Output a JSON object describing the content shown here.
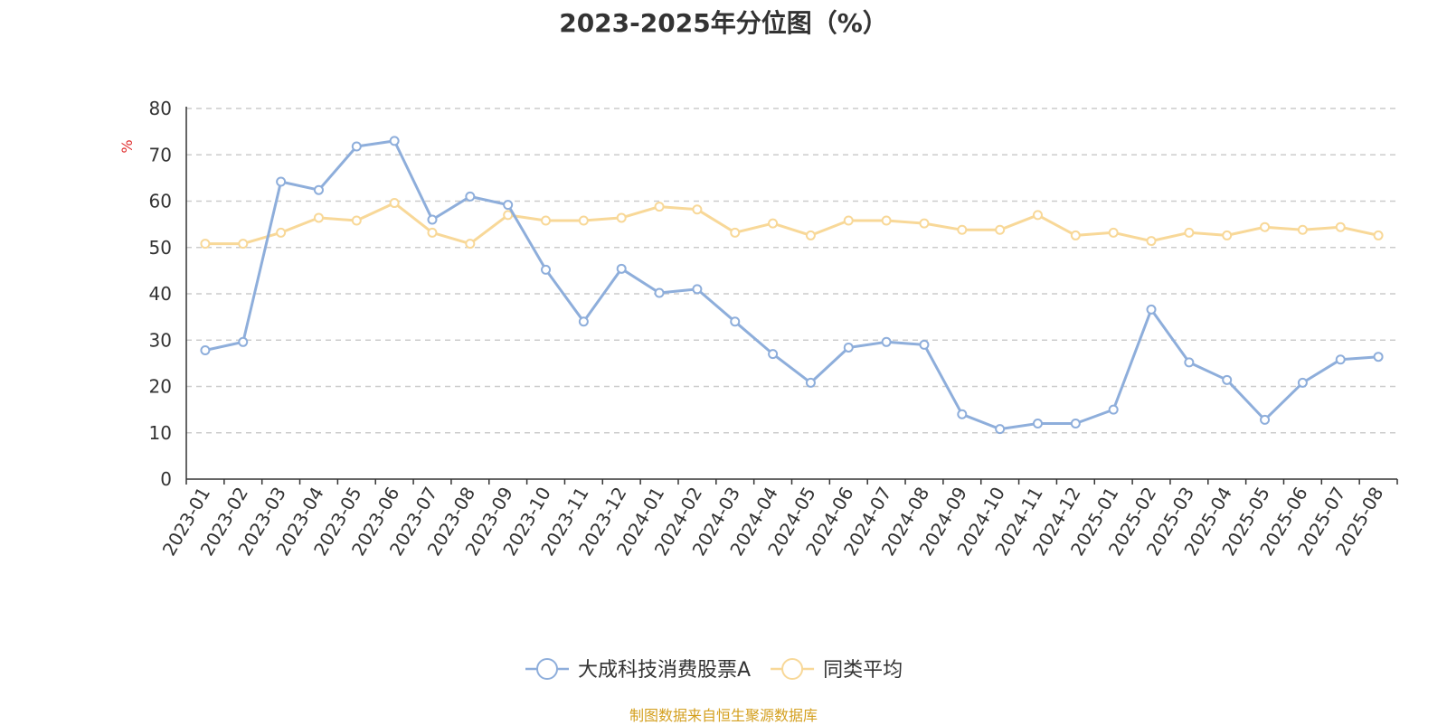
{
  "chart_data": {
    "type": "line",
    "title": "2023-2025年分位图（%）",
    "ylabel": "%",
    "ylim": [
      0,
      80
    ],
    "yticks": [
      0,
      10,
      20,
      30,
      40,
      50,
      60,
      70,
      80
    ],
    "grid": true,
    "legend_position": "bottom",
    "categories": [
      "2023-01",
      "2023-02",
      "2023-03",
      "2023-04",
      "2023-05",
      "2023-06",
      "2023-07",
      "2023-08",
      "2023-09",
      "2023-10",
      "2023-11",
      "2023-12",
      "2024-01",
      "2024-02",
      "2024-03",
      "2024-04",
      "2024-05",
      "2024-06",
      "2024-07",
      "2024-08",
      "2024-09",
      "2024-10",
      "2024-11",
      "2024-12",
      "2025-01",
      "2025-02",
      "2025-03",
      "2025-04",
      "2025-05",
      "2025-06",
      "2025-07",
      "2025-08"
    ],
    "series": [
      {
        "name": "大成科技消费股票A",
        "color": "#8eaedb",
        "values": [
          27.8,
          29.6,
          64.2,
          62.4,
          71.8,
          73.0,
          56.0,
          61.0,
          59.2,
          45.2,
          34.0,
          45.4,
          40.2,
          41.0,
          34.0,
          27.0,
          20.8,
          28.4,
          29.6,
          29.0,
          14.0,
          10.8,
          12.0,
          12.0,
          15.0,
          36.6,
          25.2,
          21.4,
          12.8,
          20.8,
          25.8,
          26.4
        ]
      },
      {
        "name": "同类平均",
        "color": "#f8d898",
        "values": [
          50.8,
          50.8,
          53.2,
          56.4,
          55.8,
          59.6,
          53.2,
          50.8,
          57.0,
          55.8,
          55.8,
          56.4,
          58.8,
          58.2,
          53.2,
          55.2,
          52.6,
          55.8,
          55.8,
          55.2,
          53.8,
          53.8,
          57.0,
          52.6,
          53.2,
          51.4,
          53.2,
          52.6,
          54.4,
          53.8,
          54.4,
          52.6
        ]
      }
    ]
  },
  "footer": {
    "source": "制图数据来自恒生聚源数据库",
    "source_color": "#d4a020"
  }
}
